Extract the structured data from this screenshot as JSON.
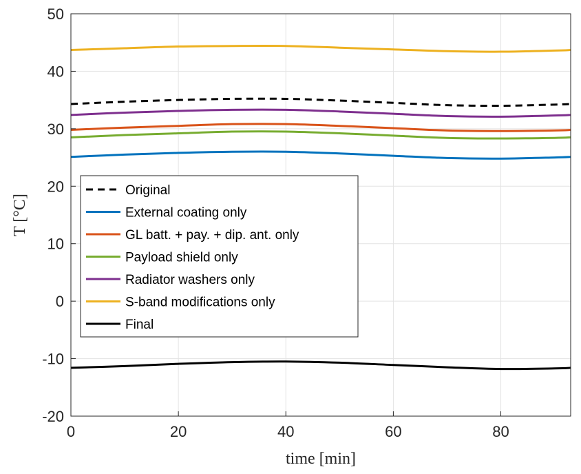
{
  "chart_data": {
    "type": "line",
    "xlabel": "time [min]",
    "ylabel": "T [°C]",
    "xlim": [
      0,
      93
    ],
    "ylim": [
      -20,
      50
    ],
    "xticks": [
      0,
      20,
      40,
      60,
      80
    ],
    "yticks": [
      -20,
      -10,
      0,
      10,
      20,
      30,
      40,
      50
    ],
    "grid": true,
    "legend_placement": "center-left",
    "series": [
      {
        "name": "Original",
        "color": "#000000",
        "style": "dashed",
        "x": [
          0,
          10,
          20,
          30,
          40,
          50,
          60,
          70,
          80,
          90,
          93
        ],
        "y": [
          34.3,
          34.7,
          35.0,
          35.2,
          35.2,
          34.9,
          34.5,
          34.1,
          34.0,
          34.2,
          34.3
        ]
      },
      {
        "name": "External coating only",
        "color": "#0072BD",
        "style": "solid",
        "x": [
          0,
          10,
          20,
          30,
          40,
          50,
          60,
          70,
          80,
          90,
          93
        ],
        "y": [
          25.1,
          25.5,
          25.8,
          26.0,
          26.0,
          25.7,
          25.3,
          24.9,
          24.8,
          25.0,
          25.1
        ]
      },
      {
        "name": "GL batt. + pay. + dip. ant. only",
        "color": "#D95319",
        "style": "solid",
        "x": [
          0,
          10,
          20,
          30,
          40,
          50,
          60,
          70,
          80,
          90,
          93
        ],
        "y": [
          29.8,
          30.2,
          30.5,
          30.8,
          30.8,
          30.5,
          30.1,
          29.7,
          29.6,
          29.7,
          29.8
        ]
      },
      {
        "name": "Payload shield only",
        "color": "#77AC30",
        "style": "solid",
        "x": [
          0,
          10,
          20,
          30,
          40,
          50,
          60,
          70,
          80,
          90,
          93
        ],
        "y": [
          28.5,
          28.9,
          29.2,
          29.5,
          29.5,
          29.2,
          28.8,
          28.4,
          28.3,
          28.4,
          28.5
        ]
      },
      {
        "name": "Radiator washers only",
        "color": "#7E2F8E",
        "style": "solid",
        "x": [
          0,
          10,
          20,
          30,
          40,
          50,
          60,
          70,
          80,
          90,
          93
        ],
        "y": [
          32.4,
          32.8,
          33.1,
          33.3,
          33.3,
          33.0,
          32.6,
          32.2,
          32.1,
          32.3,
          32.4
        ]
      },
      {
        "name": "S-band modifications only",
        "color": "#EDB120",
        "style": "solid",
        "x": [
          0,
          10,
          20,
          30,
          40,
          50,
          60,
          70,
          80,
          90,
          93
        ],
        "y": [
          43.7,
          44.0,
          44.3,
          44.4,
          44.4,
          44.1,
          43.8,
          43.5,
          43.4,
          43.6,
          43.7
        ]
      },
      {
        "name": "Final",
        "color": "#000000",
        "style": "solid",
        "x": [
          0,
          10,
          20,
          30,
          40,
          50,
          60,
          70,
          80,
          90,
          93
        ],
        "y": [
          -11.6,
          -11.3,
          -10.9,
          -10.6,
          -10.5,
          -10.7,
          -11.1,
          -11.5,
          -11.8,
          -11.7,
          -11.6
        ]
      }
    ]
  }
}
